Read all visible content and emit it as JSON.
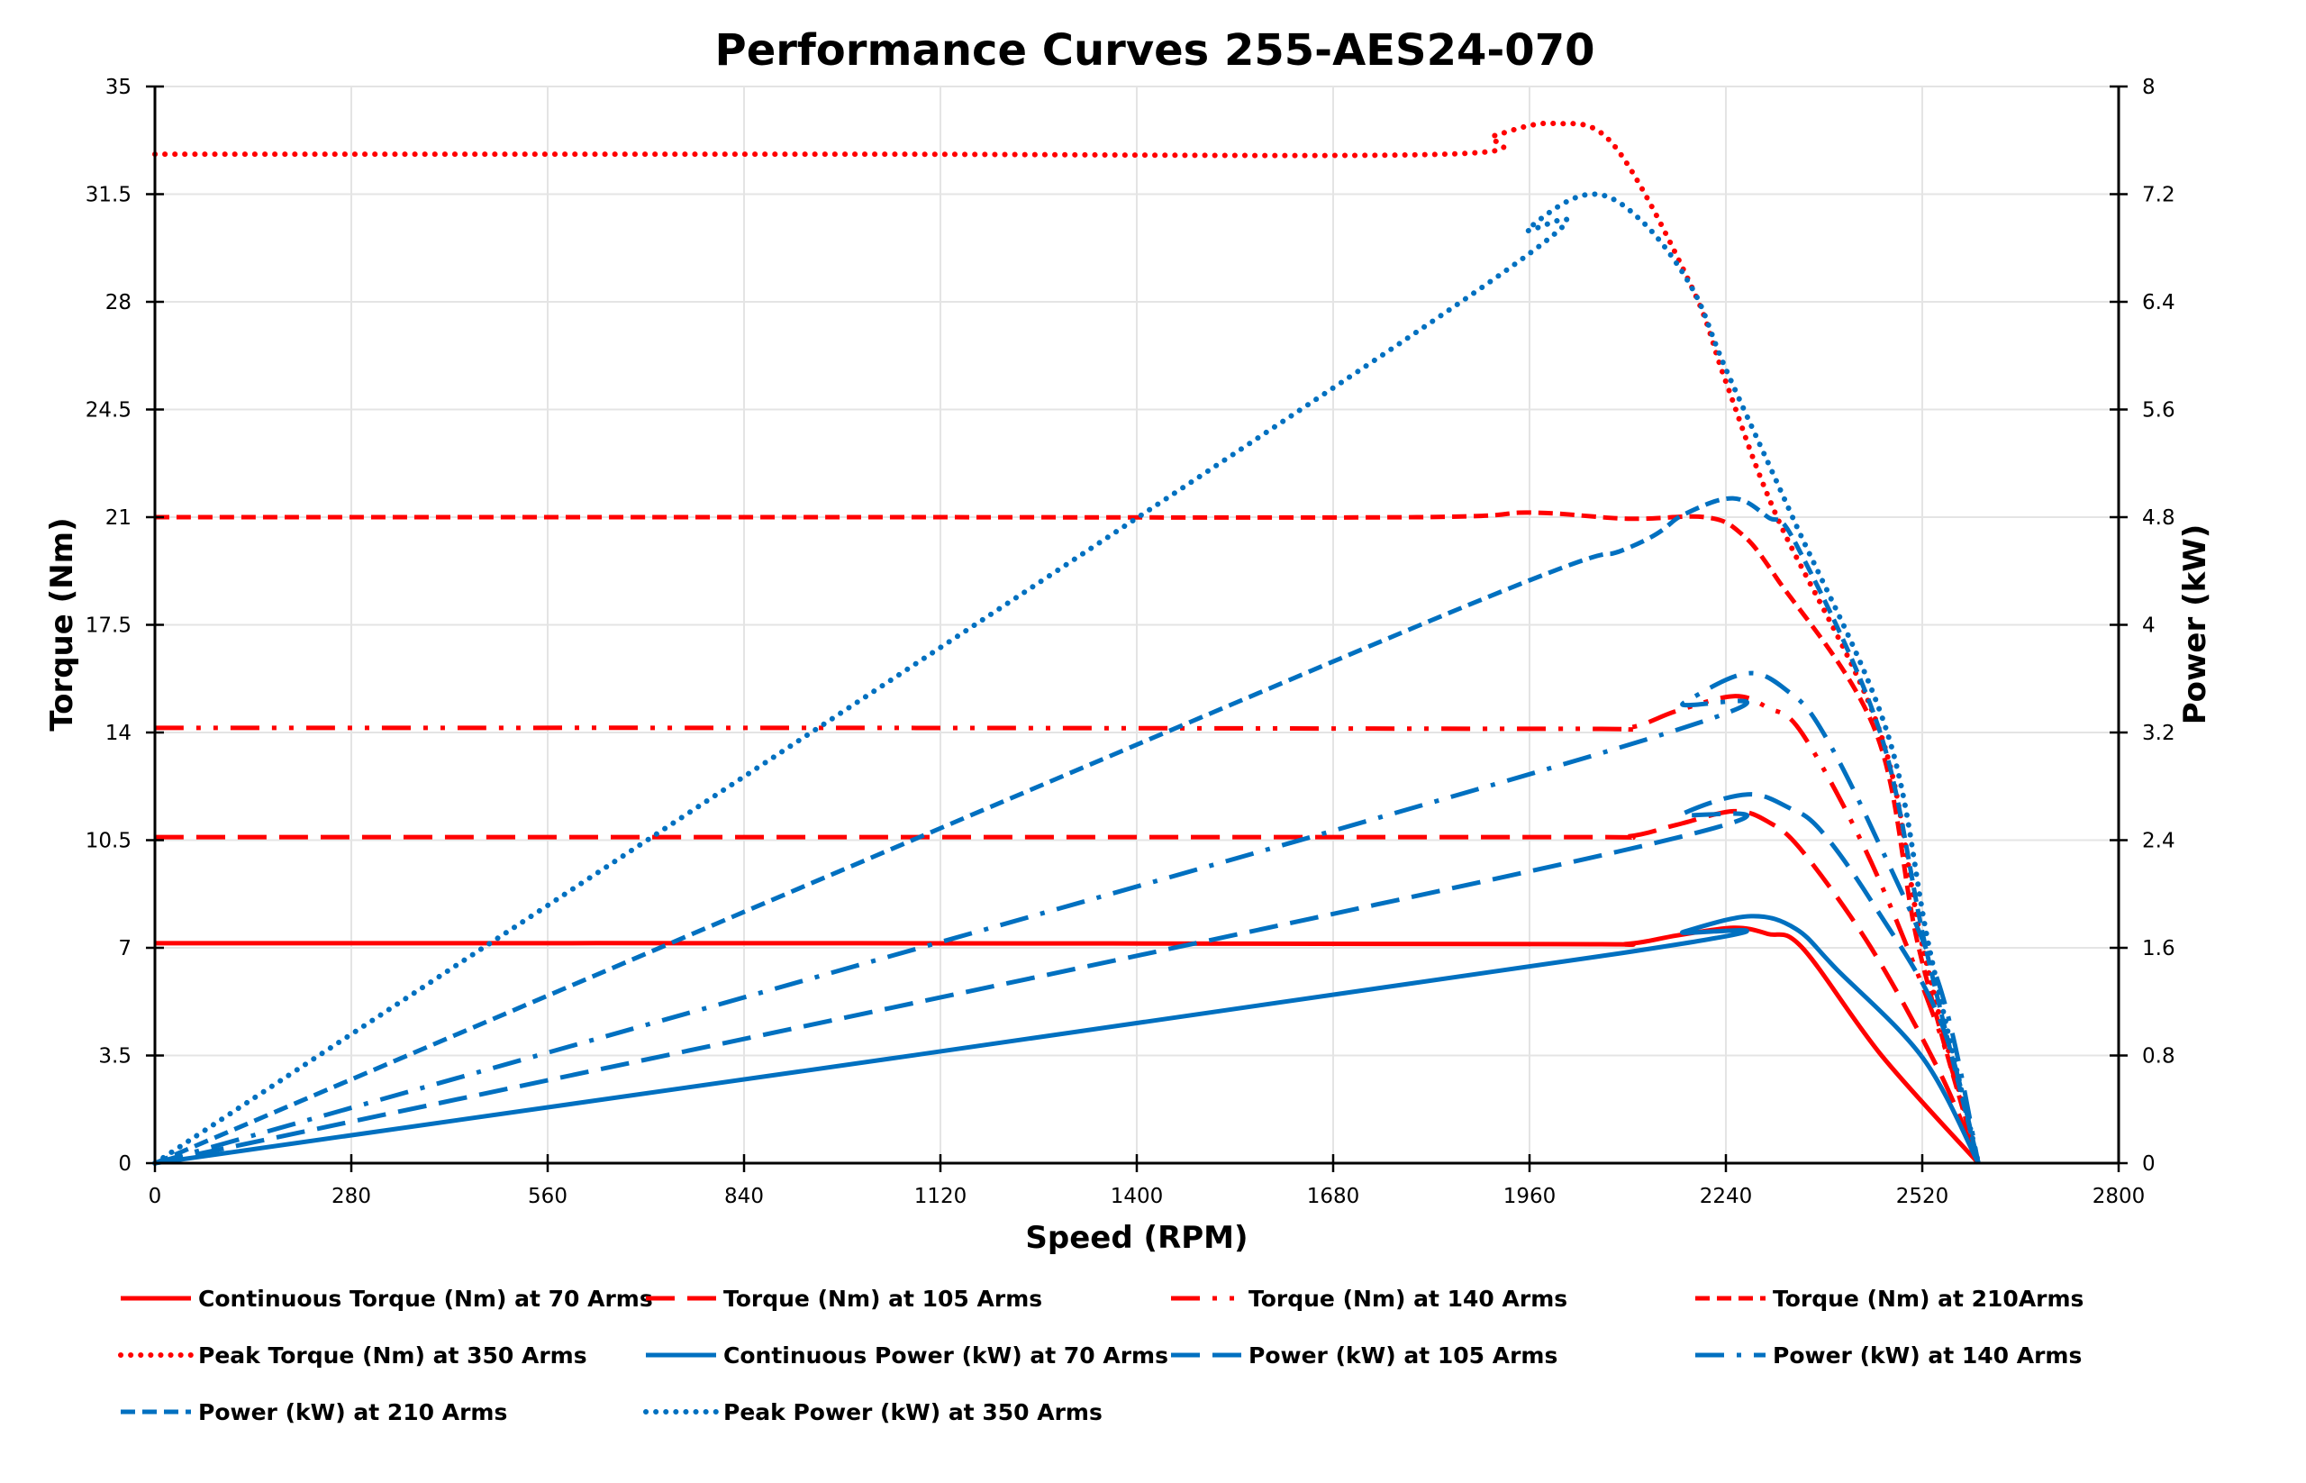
{
  "chart_data": {
    "type": "line",
    "title": "Performance Curves 255-AES24-070",
    "xlabel": "Speed (RPM)",
    "ylabel": "Torque (Nm)",
    "y2label": "Power (kW)",
    "xlim": [
      0,
      2800
    ],
    "ylim": [
      0,
      35
    ],
    "y2lim": [
      0,
      8
    ],
    "xticks": [
      "0",
      "280",
      "560",
      "840",
      "1120",
      "1400",
      "1680",
      "1960",
      "2240",
      "2520",
      "2800"
    ],
    "yticks": [
      "0",
      "3.5",
      "7",
      "10.5",
      "14",
      "17.5",
      "21",
      "24.5",
      "28",
      "31.5",
      "35"
    ],
    "y2ticks": [
      "0",
      "0.8",
      "1.6",
      "2.4",
      "3.2",
      "4",
      "4.8",
      "5.6",
      "6.4",
      "7.2",
      "8"
    ],
    "grid": true,
    "legend_position": "bottom",
    "colors": {
      "torque": "#FF0000",
      "power": "#0070C0"
    },
    "series": [
      {
        "name": "Continuous Torque (Nm) at 70 Arms",
        "axis": "left",
        "color": "#FF0000",
        "style": "solid",
        "points": [
          [
            0,
            7.15
          ],
          [
            1000,
            7.15
          ],
          [
            2000,
            7.12
          ],
          [
            2100,
            7.13
          ],
          [
            2170,
            7.4
          ],
          [
            2251,
            7.65
          ],
          [
            2300,
            7.45
          ],
          [
            2349,
            7.0
          ],
          [
            2462,
            3.5
          ],
          [
            2600,
            0
          ]
        ]
      },
      {
        "name": "Torque (Nm) at 105 Arms",
        "axis": "left",
        "color": "#FF0000",
        "style": "long-dash",
        "points": [
          [
            0,
            10.6
          ],
          [
            1000,
            10.6
          ],
          [
            2000,
            10.6
          ],
          [
            2100,
            10.62
          ],
          [
            2170,
            11.0
          ],
          [
            2251,
            11.44
          ],
          [
            2300,
            11.1
          ],
          [
            2349,
            10.14
          ],
          [
            2447,
            7.0
          ],
          [
            2545,
            2.95
          ],
          [
            2600,
            0
          ]
        ]
      },
      {
        "name": "Torque (Nm) at 140 Arms",
        "axis": "left",
        "color": "#FF0000",
        "style": "dash-dot-dot",
        "points": [
          [
            0,
            14.15
          ],
          [
            1000,
            14.15
          ],
          [
            2000,
            14.12
          ],
          [
            2100,
            14.15
          ],
          [
            2170,
            14.7
          ],
          [
            2251,
            15.18
          ],
          [
            2300,
            14.8
          ],
          [
            2349,
            13.96
          ],
          [
            2447,
            9.79
          ],
          [
            2545,
            4.23
          ],
          [
            2600,
            0
          ]
        ]
      },
      {
        "name": "Torque (Nm) at 210Arms",
        "axis": "left",
        "color": "#FF0000",
        "style": "short-dash",
        "points": [
          [
            0,
            21.0
          ],
          [
            1000,
            21.0
          ],
          [
            1800,
            21.0
          ],
          [
            1960,
            21.15
          ],
          [
            2100,
            20.95
          ],
          [
            2210,
            21.0
          ],
          [
            2260,
            20.5
          ],
          [
            2313,
            19.0
          ],
          [
            2454,
            14.0
          ],
          [
            2515,
            7.0
          ],
          [
            2600,
            0
          ]
        ]
      },
      {
        "name": "Peak Torque (Nm) at 350  Arms",
        "axis": "left",
        "color": "#FF0000",
        "style": "dotted",
        "points": [
          [
            0,
            32.8
          ],
          [
            1000,
            32.8
          ],
          [
            1840,
            32.8
          ],
          [
            1910,
            33.4
          ],
          [
            1994,
            33.8
          ],
          [
            2080,
            33.1
          ],
          [
            2192,
            28.45
          ],
          [
            2240,
            25.4
          ],
          [
            2313,
            21.0
          ],
          [
            2460,
            14.0
          ],
          [
            2521,
            7.0
          ],
          [
            2600,
            0
          ]
        ]
      },
      {
        "name": "Continuous Power (kW) at 70 Arms",
        "axis": "right",
        "color": "#0070C0",
        "style": "solid",
        "points": [
          [
            0,
            0
          ],
          [
            2090,
            1.56
          ],
          [
            2180,
            1.72
          ],
          [
            2276,
            1.835
          ],
          [
            2340,
            1.74
          ],
          [
            2398,
            1.44
          ],
          [
            2521,
            0.78
          ],
          [
            2600,
            0
          ]
        ]
      },
      {
        "name": "Power (kW) at 105 Arms",
        "axis": "right",
        "color": "#0070C0",
        "style": "long-dash",
        "points": [
          [
            0,
            0
          ],
          [
            2090,
            2.32
          ],
          [
            2180,
            2.6
          ],
          [
            2271,
            2.74
          ],
          [
            2330,
            2.64
          ],
          [
            2374,
            2.48
          ],
          [
            2447,
            1.95
          ],
          [
            2545,
            1.07
          ],
          [
            2600,
            0
          ]
        ]
      },
      {
        "name": "Power (kW) at 140 Arms",
        "axis": "right",
        "color": "#0070C0",
        "style": "dash-dot",
        "points": [
          [
            0,
            0
          ],
          [
            2090,
            3.09
          ],
          [
            2180,
            3.42
          ],
          [
            2271,
            3.64
          ],
          [
            2330,
            3.5
          ],
          [
            2374,
            3.24
          ],
          [
            2447,
            2.5
          ],
          [
            2545,
            1.31
          ],
          [
            2600,
            0
          ]
        ]
      },
      {
        "name": "Power (kW) at 210 Arms",
        "axis": "right",
        "color": "#0070C0",
        "style": "short-dash",
        "points": [
          [
            0,
            0
          ],
          [
            1800,
            3.99
          ],
          [
            2100,
            4.57
          ],
          [
            2180,
            4.82
          ],
          [
            2250,
            4.94
          ],
          [
            2300,
            4.8
          ],
          [
            2340,
            4.6
          ],
          [
            2460,
            3.2
          ],
          [
            2525,
            1.6
          ],
          [
            2600,
            0
          ]
        ]
      },
      {
        "name": "Peak Power (kW) at 350 Arms",
        "axis": "right",
        "color": "#0070C0",
        "style": "dotted",
        "points": [
          [
            0,
            0
          ],
          [
            1840,
            6.32
          ],
          [
            1960,
            6.95
          ],
          [
            2048,
            7.2
          ],
          [
            2120,
            7.0
          ],
          [
            2192,
            6.5
          ],
          [
            2240,
            5.9
          ],
          [
            2335,
            4.8
          ],
          [
            2470,
            3.2
          ],
          [
            2530,
            1.6
          ],
          [
            2600,
            0
          ]
        ]
      }
    ]
  }
}
